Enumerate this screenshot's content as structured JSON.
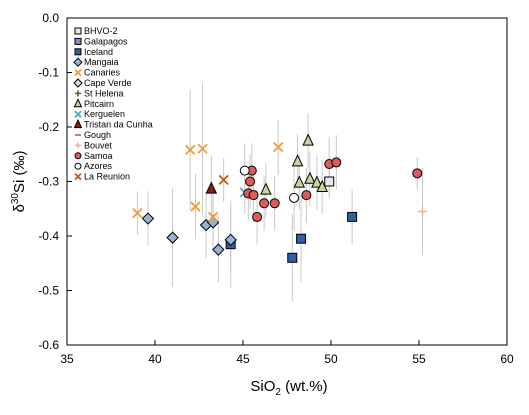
{
  "chart_data": {
    "type": "scatter",
    "xlabel": "SiO",
    "xlabel_sub": "2",
    "xlabel_unit": " (wt.%)",
    "ylabel_sup": "30",
    "ylabel_pre": "δ",
    "ylabel_post": "Si (‰)",
    "xlim": [
      35,
      60
    ],
    "ylim": [
      -0.6,
      0.0
    ],
    "xticks": [
      35,
      40,
      45,
      50,
      55,
      60
    ],
    "yticks": [
      0.0,
      -0.1,
      -0.2,
      -0.3,
      -0.4,
      -0.5,
      -0.6
    ],
    "xtick_labels": [
      "35",
      "40",
      "45",
      "50",
      "55",
      "60"
    ],
    "ytick_labels": [
      "0.0",
      "-0.1",
      "-0.2",
      "-0.3",
      "-0.4",
      "-0.5",
      "-0.6"
    ],
    "grid": false,
    "legend_position": "top-left",
    "series": [
      {
        "name": "BHVO-2",
        "marker": "square",
        "fill": "#e8e8e8",
        "stroke": "#000000",
        "points": [
          {
            "x": 49.9,
            "y": -0.3,
            "err": 0.03
          }
        ]
      },
      {
        "name": "Galapagos",
        "marker": "square",
        "fill": "#7f8fc8",
        "stroke": "#000000",
        "points": []
      },
      {
        "name": "Iceland",
        "marker": "square",
        "fill": "#2f5fa8",
        "stroke": "#000000",
        "points": [
          {
            "x": 44.3,
            "y": -0.415,
            "err": 0.08
          },
          {
            "x": 47.8,
            "y": -0.44,
            "err": 0.08
          },
          {
            "x": 48.3,
            "y": -0.405,
            "err": 0.08
          },
          {
            "x": 51.2,
            "y": -0.365,
            "err": 0.05
          }
        ]
      },
      {
        "name": "Mangaia",
        "marker": "diamond",
        "fill": "#95b3d7",
        "stroke": "#000000",
        "points": [
          {
            "x": 39.6,
            "y": -0.368,
            "err": 0.05
          },
          {
            "x": 41.0,
            "y": -0.403,
            "err": 0.09
          },
          {
            "x": 42.9,
            "y": -0.38,
            "err": 0.06
          },
          {
            "x": 43.3,
            "y": -0.375,
            "err": 0.05
          },
          {
            "x": 43.6,
            "y": -0.425,
            "err": 0.06
          },
          {
            "x": 44.3,
            "y": -0.407,
            "err": 0.06
          }
        ]
      },
      {
        "name": "Canaries",
        "marker": "x",
        "fill": "none",
        "stroke": "#f29a3a",
        "points": [
          {
            "x": 39.0,
            "y": -0.358,
            "err": 0.04
          },
          {
            "x": 42.0,
            "y": -0.242,
            "err": 0.11
          },
          {
            "x": 42.3,
            "y": -0.346,
            "err": 0.06
          },
          {
            "x": 42.7,
            "y": -0.24,
            "err": 0.12
          },
          {
            "x": 43.3,
            "y": -0.365,
            "err": 0.05
          },
          {
            "x": 47.0,
            "y": -0.237,
            "err": 0.05
          }
        ]
      },
      {
        "name": "Cape Verde",
        "marker": "diamond",
        "fill": "#d9d9d9",
        "stroke": "#000000",
        "points": []
      },
      {
        "name": "St Helena",
        "marker": "plus",
        "fill": "none",
        "stroke": "#4f6228",
        "points": [
          {
            "x": 45.4,
            "y": -0.3,
            "err": 0.04
          }
        ]
      },
      {
        "name": "Pitcairn",
        "marker": "triangle",
        "fill": "#c3d69b",
        "stroke": "#000000",
        "points": [
          {
            "x": 46.3,
            "y": -0.315,
            "err": 0.05
          },
          {
            "x": 48.1,
            "y": -0.263,
            "err": 0.05
          },
          {
            "x": 48.2,
            "y": -0.302,
            "err": 0.05
          },
          {
            "x": 48.7,
            "y": -0.225,
            "err": 0.05
          },
          {
            "x": 48.8,
            "y": -0.295,
            "err": 0.05
          },
          {
            "x": 49.2,
            "y": -0.302,
            "err": 0.05
          },
          {
            "x": 49.5,
            "y": -0.31,
            "err": 0.05
          }
        ]
      },
      {
        "name": "Kerguelen",
        "marker": "x",
        "fill": "none",
        "stroke": "#4bacc6",
        "points": [
          {
            "x": 45.1,
            "y": -0.32,
            "err": 0.04
          }
        ]
      },
      {
        "name": "Tristan da Cunha",
        "marker": "triangle",
        "fill": "#8b1a1a",
        "stroke": "#000000",
        "points": [
          {
            "x": 43.2,
            "y": -0.313,
            "err": 0.06
          }
        ]
      },
      {
        "name": "Gough",
        "marker": "dash",
        "fill": "none",
        "stroke": "#c0504d",
        "points": []
      },
      {
        "name": "Bouvet",
        "marker": "plus",
        "fill": "none",
        "stroke": "#f4b183",
        "points": [
          {
            "x": 55.2,
            "y": -0.355,
            "err": 0.08
          }
        ]
      },
      {
        "name": "Samoa",
        "marker": "circle",
        "fill": "#e05a5a",
        "stroke": "#000000",
        "points": [
          {
            "x": 45.3,
            "y": -0.322,
            "err": 0.05
          },
          {
            "x": 45.4,
            "y": -0.3,
            "err": 0.05
          },
          {
            "x": 45.5,
            "y": -0.28,
            "err": 0.05
          },
          {
            "x": 45.6,
            "y": -0.325,
            "err": 0.05
          },
          {
            "x": 45.8,
            "y": -0.365,
            "err": 0.05
          },
          {
            "x": 46.2,
            "y": -0.34,
            "err": 0.05
          },
          {
            "x": 46.8,
            "y": -0.34,
            "err": 0.05
          },
          {
            "x": 48.6,
            "y": -0.325,
            "err": 0.05
          },
          {
            "x": 49.9,
            "y": -0.268,
            "err": 0.05
          },
          {
            "x": 50.3,
            "y": -0.265,
            "err": 0.05
          },
          {
            "x": 54.9,
            "y": -0.285,
            "err": 0.03
          }
        ]
      },
      {
        "name": "Azores",
        "marker": "circle",
        "fill": "#ffffff",
        "stroke": "#000000",
        "points": [
          {
            "x": 45.1,
            "y": -0.28,
            "err": 0.05
          },
          {
            "x": 47.9,
            "y": -0.33,
            "err": 0.06
          }
        ]
      },
      {
        "name": "La Reunion",
        "marker": "x",
        "fill": "none",
        "stroke": "#c55a11",
        "points": [
          {
            "x": 43.9,
            "y": -0.297,
            "err": 0.04
          }
        ]
      }
    ]
  }
}
